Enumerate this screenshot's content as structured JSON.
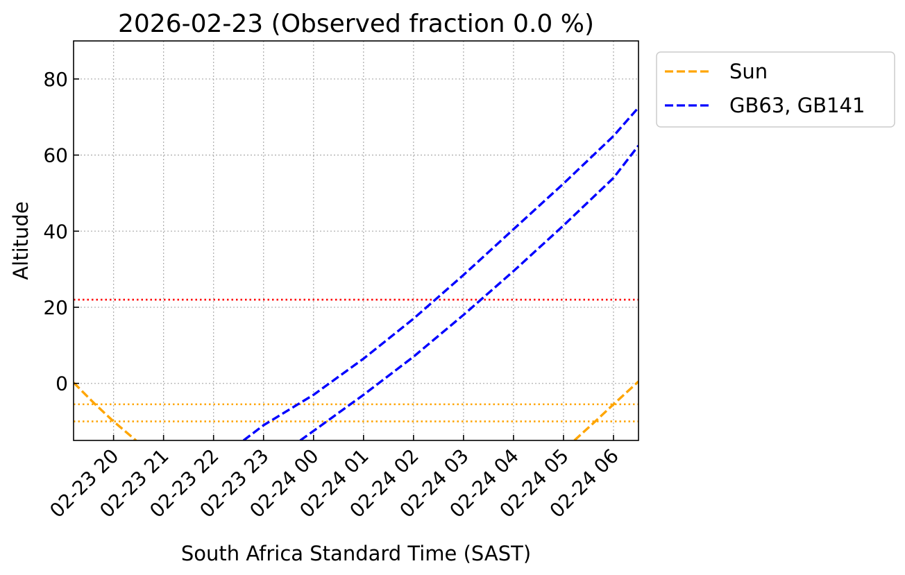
{
  "chart_data": {
    "type": "line",
    "title": "2026-02-23 (Observed fraction 0.0 %)",
    "xlabel": "South Africa Standard Time (SAST)",
    "ylabel": "Altitude",
    "x_unit": "hours (SAST)",
    "xlim": [
      "2026-02-23 19:12",
      "2026-02-24 06:30"
    ],
    "ylim": [
      -15,
      90
    ],
    "x_ticks": [
      {
        "time": "2026-02-23 20:00",
        "label": "02-23 20"
      },
      {
        "time": "2026-02-23 21:00",
        "label": "02-23 21"
      },
      {
        "time": "2026-02-23 22:00",
        "label": "02-23 22"
      },
      {
        "time": "2026-02-23 23:00",
        "label": "02-23 23"
      },
      {
        "time": "2026-02-24 00:00",
        "label": "02-24 00"
      },
      {
        "time": "2026-02-24 01:00",
        "label": "02-24 01"
      },
      {
        "time": "2026-02-24 02:00",
        "label": "02-24 02"
      },
      {
        "time": "2026-02-24 03:00",
        "label": "02-24 03"
      },
      {
        "time": "2026-02-24 04:00",
        "label": "02-24 04"
      },
      {
        "time": "2026-02-24 05:00",
        "label": "02-24 05"
      },
      {
        "time": "2026-02-24 06:00",
        "label": "02-24 06"
      }
    ],
    "y_ticks": [
      0,
      20,
      40,
      60,
      80
    ],
    "grid": true,
    "legend_placement": "outside upper right",
    "legend": [
      {
        "label": "Sun",
        "color": "#FFA500",
        "style": "dashed"
      },
      {
        "label": "GB63, GB141",
        "color": "#0000FF",
        "style": "dashed"
      }
    ],
    "series": [
      {
        "legend": "Sun",
        "color": "#FFA500",
        "style": "dashed",
        "points": [
          [
            "2026-02-23 19:12",
            0.2
          ],
          [
            "2026-02-23 19:38",
            -5.5
          ],
          [
            "2026-02-23 20:00",
            -10
          ],
          [
            "2026-02-23 20:27",
            -15
          ]
        ]
      },
      {
        "legend": "Sun",
        "color": "#FFA500",
        "style": "dashed",
        "points": [
          [
            "2026-02-24 05:13",
            -15
          ],
          [
            "2026-02-24 05:38",
            -10
          ],
          [
            "2026-02-24 06:00",
            -5.5
          ],
          [
            "2026-02-24 06:30",
            0.5
          ]
        ]
      },
      {
        "legend": "GB63, GB141",
        "color": "#0000FF",
        "style": "dashed",
        "points": [
          [
            "2026-02-23 22:36",
            -15
          ],
          [
            "2026-02-23 23:00",
            -11
          ],
          [
            "2026-02-24 00:00",
            -3
          ],
          [
            "2026-02-24 01:00",
            6.5
          ],
          [
            "2026-02-24 02:00",
            17
          ],
          [
            "2026-02-24 03:00",
            28.5
          ],
          [
            "2026-02-24 04:00",
            40.5
          ],
          [
            "2026-02-24 05:00",
            52.5
          ],
          [
            "2026-02-24 06:00",
            65
          ],
          [
            "2026-02-24 06:30",
            72.5
          ]
        ]
      },
      {
        "legend": "GB63, GB141",
        "color": "#0000FF",
        "style": "dashed",
        "points": [
          [
            "2026-02-23 23:44",
            -15
          ],
          [
            "2026-02-24 00:00",
            -12.5
          ],
          [
            "2026-02-24 01:00",
            -3
          ],
          [
            "2026-02-24 02:00",
            7
          ],
          [
            "2026-02-24 03:00",
            18
          ],
          [
            "2026-02-24 04:00",
            29.5
          ],
          [
            "2026-02-24 05:00",
            41.5
          ],
          [
            "2026-02-24 06:00",
            54
          ],
          [
            "2026-02-24 06:30",
            62.5
          ]
        ]
      }
    ],
    "horizontal_lines": [
      {
        "y": 22,
        "color": "#FF0000",
        "style": "dotted"
      },
      {
        "y": -5.5,
        "color": "#FFA500",
        "style": "dotted"
      },
      {
        "y": -10,
        "color": "#FFA500",
        "style": "dotted"
      }
    ]
  }
}
